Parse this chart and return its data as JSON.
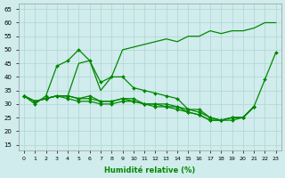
{
  "xlabel": "Humidité relative (%)",
  "background_color": "#d0ecec",
  "grid_color": "#b0d4d4",
  "line_color": "#008800",
  "lines": [
    {
      "x": [
        0,
        1,
        2,
        3,
        4,
        5,
        6,
        7,
        8,
        9,
        10,
        11,
        12,
        13,
        14,
        15,
        16,
        17,
        18,
        19,
        20,
        21,
        22,
        23
      ],
      "y": [
        33,
        31,
        32,
        33,
        33,
        45,
        46,
        35,
        40,
        50,
        51,
        52,
        53,
        54,
        53,
        55,
        55,
        57,
        56,
        57,
        57,
        58,
        60,
        60
      ],
      "has_markers": false
    },
    {
      "x": [
        0,
        1,
        2,
        3,
        4,
        5,
        6,
        7,
        8,
        9,
        10,
        11,
        12,
        13,
        14,
        15,
        16,
        17,
        18,
        19,
        20,
        21,
        22,
        23
      ],
      "y": [
        33,
        30,
        33,
        44,
        46,
        50,
        46,
        38,
        40,
        40,
        36,
        35,
        34,
        33,
        32,
        28,
        28,
        25,
        24,
        25,
        25,
        29,
        39,
        49
      ],
      "has_markers": true
    },
    {
      "x": [
        0,
        1,
        2,
        3,
        4,
        5,
        6,
        7,
        8,
        9,
        10,
        11,
        12,
        13,
        14,
        15,
        16,
        17,
        18,
        19,
        20,
        21
      ],
      "y": [
        33,
        31,
        32,
        33,
        33,
        32,
        33,
        31,
        31,
        32,
        31,
        30,
        30,
        29,
        29,
        28,
        27,
        25,
        24,
        25,
        25,
        29
      ],
      "has_markers": true
    },
    {
      "x": [
        0,
        1,
        2,
        3,
        4,
        5,
        6,
        7,
        8,
        9,
        10,
        11,
        12,
        13,
        14,
        15,
        16,
        17,
        18,
        19,
        20,
        21
      ],
      "y": [
        33,
        31,
        32,
        33,
        33,
        32,
        32,
        31,
        31,
        32,
        32,
        30,
        30,
        30,
        29,
        27,
        26,
        24,
        24,
        25,
        25,
        29
      ],
      "has_markers": true
    },
    {
      "x": [
        0,
        1,
        2,
        3,
        4,
        5,
        6,
        7,
        8,
        9,
        10,
        11,
        12,
        13,
        14,
        15,
        16,
        17,
        18,
        19,
        20,
        21
      ],
      "y": [
        33,
        31,
        32,
        33,
        32,
        31,
        31,
        30,
        30,
        31,
        31,
        30,
        29,
        29,
        28,
        27,
        26,
        24,
        24,
        24,
        25,
        29
      ],
      "has_markers": true
    }
  ],
  "xlim": [
    -0.5,
    23.5
  ],
  "ylim": [
    13,
    67
  ],
  "yticks": [
    15,
    20,
    25,
    30,
    35,
    40,
    45,
    50,
    55,
    60,
    65
  ],
  "xtick_labels": [
    "0",
    "1",
    "2",
    "3",
    "4",
    "5",
    "6",
    "7",
    "8",
    "9",
    "10",
    "11",
    "12",
    "13",
    "14",
    "15",
    "16",
    "17",
    "18",
    "19",
    "20",
    "21",
    "22",
    "23"
  ],
  "marker": "D",
  "marker_size": 2.0,
  "linewidth": 0.9
}
